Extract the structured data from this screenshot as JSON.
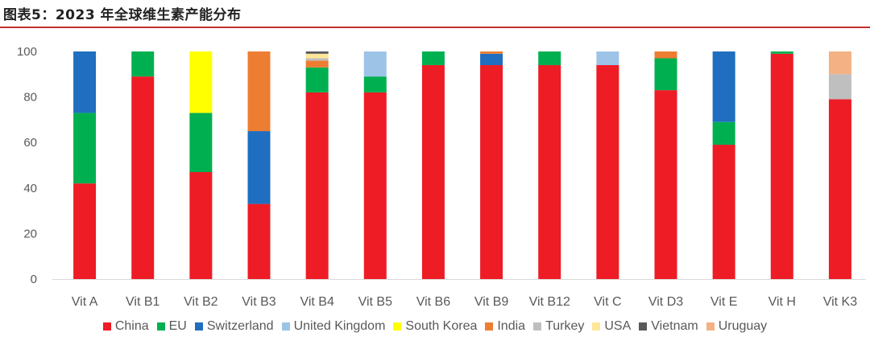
{
  "figure_title": "图表5：2023 年全球维生素产能分布",
  "chart_data": {
    "type": "bar",
    "stacked": true,
    "ylim": [
      0,
      100
    ],
    "yticks": [
      0,
      20,
      40,
      60,
      80,
      100
    ],
    "grid": false,
    "legend_position": "bottom",
    "categories": [
      "Vit A",
      "Vit B1",
      "Vit B2",
      "Vit B3",
      "Vit B4",
      "Vit B5",
      "Vit B6",
      "Vit B9",
      "Vit B12",
      "Vit C",
      "Vit D3",
      "Vit E",
      "Vit H",
      "Vit K3"
    ],
    "series": [
      {
        "name": "China",
        "color": "#ee1c25",
        "values": [
          42,
          89,
          47,
          33,
          82,
          82,
          94,
          94,
          94,
          94,
          83,
          59,
          99,
          79
        ]
      },
      {
        "name": "EU",
        "color": "#00b050",
        "values": [
          31,
          11,
          26,
          0,
          11,
          7,
          6,
          0,
          6,
          0,
          14,
          10,
          1,
          0
        ]
      },
      {
        "name": "Switzerland",
        "color": "#1f6ebf",
        "values": [
          27,
          0,
          0,
          32,
          0,
          0,
          0,
          5,
          0,
          0,
          0,
          31,
          0,
          0
        ]
      },
      {
        "name": "United Kingdom",
        "color": "#9dc3e6",
        "values": [
          0,
          0,
          0,
          0,
          0,
          11,
          0,
          0,
          0,
          6,
          0,
          0,
          0,
          0
        ]
      },
      {
        "name": "South Korea",
        "color": "#ffff00",
        "values": [
          0,
          0,
          27,
          0,
          0,
          0,
          0,
          0,
          0,
          0,
          0,
          0,
          0,
          0
        ]
      },
      {
        "name": "India",
        "color": "#ed7d31",
        "values": [
          0,
          0,
          0,
          35,
          3,
          0,
          0,
          1,
          0,
          0,
          3,
          0,
          0,
          0
        ]
      },
      {
        "name": "Turkey",
        "color": "#bfbfbf",
        "values": [
          0,
          0,
          0,
          0,
          1,
          0,
          0,
          0,
          0,
          0,
          0,
          0,
          0,
          11
        ]
      },
      {
        "name": "USA",
        "color": "#ffe699",
        "values": [
          0,
          0,
          0,
          0,
          2,
          0,
          0,
          0,
          0,
          0,
          0,
          0,
          0,
          0
        ]
      },
      {
        "name": "Vietnam",
        "color": "#595959",
        "values": [
          0,
          0,
          0,
          0,
          1,
          0,
          0,
          0,
          0,
          0,
          0,
          0,
          0,
          0
        ]
      },
      {
        "name": "Uruguay",
        "color": "#f4b183",
        "values": [
          0,
          0,
          0,
          0,
          0,
          0,
          0,
          0,
          0,
          0,
          0,
          0,
          0,
          10
        ]
      }
    ]
  }
}
